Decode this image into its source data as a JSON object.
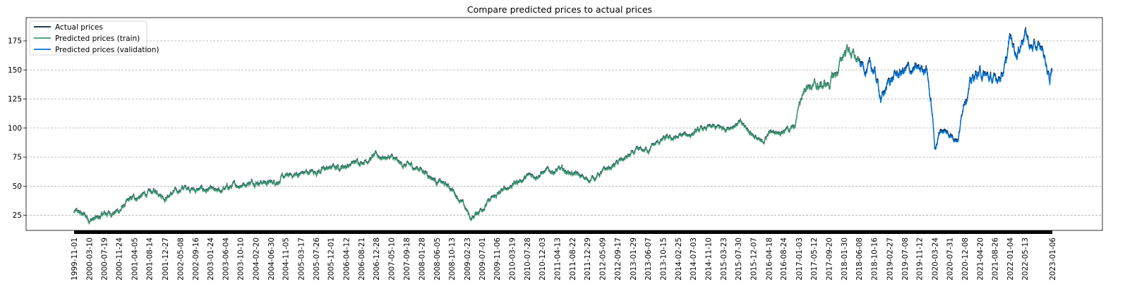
{
  "chart_data": {
    "type": "line",
    "title": "Compare predicted prices to actual prices",
    "xlabel": "",
    "ylabel": "",
    "ylim": [
      12,
      195
    ],
    "yticks": [
      25,
      50,
      75,
      100,
      125,
      150,
      175
    ],
    "grid": "y-dashed",
    "legend_position": "top-left",
    "colors": {
      "actual": "#001f3f",
      "train": "#3d9970",
      "validation": "#0074d9",
      "grid": "#b0b0b0",
      "date_band": "#000000"
    },
    "x_tick_labels": [
      "1999-11-01",
      "2000-03-10",
      "2000-07-19",
      "2000-11-24",
      "2001-04-05",
      "2001-08-14",
      "2001-12-27",
      "2002-05-08",
      "2002-09-16",
      "2003-01-24",
      "2003-06-04",
      "2003-10-10",
      "2004-02-20",
      "2004-06-30",
      "2004-11-05",
      "2005-03-17",
      "2005-07-26",
      "2005-12-01",
      "2006-04-12",
      "2006-08-21",
      "2006-12-28",
      "2007-05-10",
      "2007-09-18",
      "2008-01-28",
      "2008-06-05",
      "2008-10-13",
      "2009-02-23",
      "2009-07-01",
      "2009-11-06",
      "2010-03-19",
      "2010-07-28",
      "2010-12-03",
      "2011-04-13",
      "2011-08-22",
      "2011-12-29",
      "2012-05-09",
      "2012-09-17",
      "2013-01-29",
      "2013-06-07",
      "2013-10-15",
      "2014-02-25",
      "2014-07-03",
      "2014-11-10",
      "2015-03-23",
      "2015-07-30",
      "2015-12-07",
      "2016-04-18",
      "2016-08-24",
      "2017-01-03",
      "2017-05-12",
      "2017-09-20",
      "2018-01-30",
      "2018-06-08",
      "2018-10-16",
      "2019-02-27",
      "2019-07-08",
      "2019-11-12",
      "2020-03-24",
      "2020-07-31",
      "2020-12-08",
      "2021-04-20",
      "2021-08-26",
      "2022-01-04",
      "2022-05-13",
      "2023-01-06"
    ],
    "legend": [
      {
        "label": "Actual prices",
        "color": "#001f3f"
      },
      {
        "label": "Predicted prices (train)",
        "color": "#3d9970"
      },
      {
        "label": "Predicted prices (validation)",
        "color": "#0074d9"
      }
    ],
    "anchors": [
      [
        "1999-11-01",
        28
      ],
      [
        "2000-01-15",
        26
      ],
      [
        "2000-03-10",
        22
      ],
      [
        "2000-05-20",
        22
      ],
      [
        "2000-07-19",
        26
      ],
      [
        "2000-11-24",
        29
      ],
      [
        "2001-02-15",
        37
      ],
      [
        "2001-04-05",
        40
      ],
      [
        "2001-08-14",
        44
      ],
      [
        "2001-11-01",
        46
      ],
      [
        "2001-12-27",
        41
      ],
      [
        "2002-05-08",
        47
      ],
      [
        "2002-07-15",
        50
      ],
      [
        "2002-09-16",
        47
      ],
      [
        "2003-01-24",
        47
      ],
      [
        "2003-03-15",
        44
      ],
      [
        "2003-06-04",
        48
      ],
      [
        "2003-10-10",
        52
      ],
      [
        "2004-02-20",
        55
      ],
      [
        "2004-06-30",
        53
      ],
      [
        "2004-11-05",
        58
      ],
      [
        "2005-03-17",
        61
      ],
      [
        "2005-07-26",
        63
      ],
      [
        "2005-12-01",
        66
      ],
      [
        "2006-04-12",
        68
      ],
      [
        "2006-08-21",
        72
      ],
      [
        "2006-12-28",
        76
      ],
      [
        "2007-05-10",
        75
      ],
      [
        "2007-07-15",
        69
      ],
      [
        "2007-09-18",
        68
      ],
      [
        "2008-01-28",
        65
      ],
      [
        "2008-06-05",
        55
      ],
      [
        "2008-10-13",
        48
      ],
      [
        "2008-12-15",
        40
      ],
      [
        "2009-02-23",
        28
      ],
      [
        "2009-04-01",
        22
      ],
      [
        "2009-07-01",
        32
      ],
      [
        "2009-11-06",
        42
      ],
      [
        "2010-03-19",
        52
      ],
      [
        "2010-07-28",
        58
      ],
      [
        "2010-12-03",
        62
      ],
      [
        "2011-04-13",
        64
      ],
      [
        "2011-08-22",
        62
      ],
      [
        "2011-12-29",
        55
      ],
      [
        "2012-05-09",
        62
      ],
      [
        "2012-09-17",
        70
      ],
      [
        "2013-01-29",
        78
      ],
      [
        "2013-06-07",
        82
      ],
      [
        "2013-10-15",
        90
      ],
      [
        "2014-02-25",
        92
      ],
      [
        "2014-07-03",
        96
      ],
      [
        "2014-11-10",
        100
      ],
      [
        "2015-03-23",
        100
      ],
      [
        "2015-07-30",
        105
      ],
      [
        "2015-12-07",
        95
      ],
      [
        "2016-02-15",
        86
      ],
      [
        "2016-04-18",
        96
      ],
      [
        "2016-08-24",
        99
      ],
      [
        "2016-12-01",
        100
      ],
      [
        "2017-01-03",
        120
      ],
      [
        "2017-03-15",
        142
      ],
      [
        "2017-05-12",
        135
      ],
      [
        "2017-09-20",
        138
      ],
      [
        "2017-12-01",
        148
      ],
      [
        "2018-01-30",
        165
      ],
      [
        "2018-03-01",
        170
      ],
      [
        "2018-06-08",
        155
      ],
      [
        "2018-10-16",
        150
      ],
      [
        "2018-12-20",
        125
      ],
      [
        "2019-02-27",
        142
      ],
      [
        "2019-07-08",
        150
      ],
      [
        "2019-11-12",
        150
      ],
      [
        "2020-01-15",
        155
      ],
      [
        "2020-03-10",
        105
      ],
      [
        "2020-03-24",
        82
      ],
      [
        "2020-05-15",
        100
      ],
      [
        "2020-07-31",
        95
      ],
      [
        "2020-10-15",
        92
      ],
      [
        "2020-12-08",
        128
      ],
      [
        "2021-03-01",
        145
      ],
      [
        "2021-04-20",
        148
      ],
      [
        "2021-08-26",
        140
      ],
      [
        "2021-12-01",
        155
      ],
      [
        "2022-01-04",
        178
      ],
      [
        "2022-03-10",
        165
      ],
      [
        "2022-05-13",
        185
      ],
      [
        "2022-07-01",
        170
      ],
      [
        "2022-10-15",
        168
      ],
      [
        "2022-12-15",
        142
      ],
      [
        "2023-01-06",
        150
      ]
    ],
    "train_end": "2018-06-08"
  }
}
